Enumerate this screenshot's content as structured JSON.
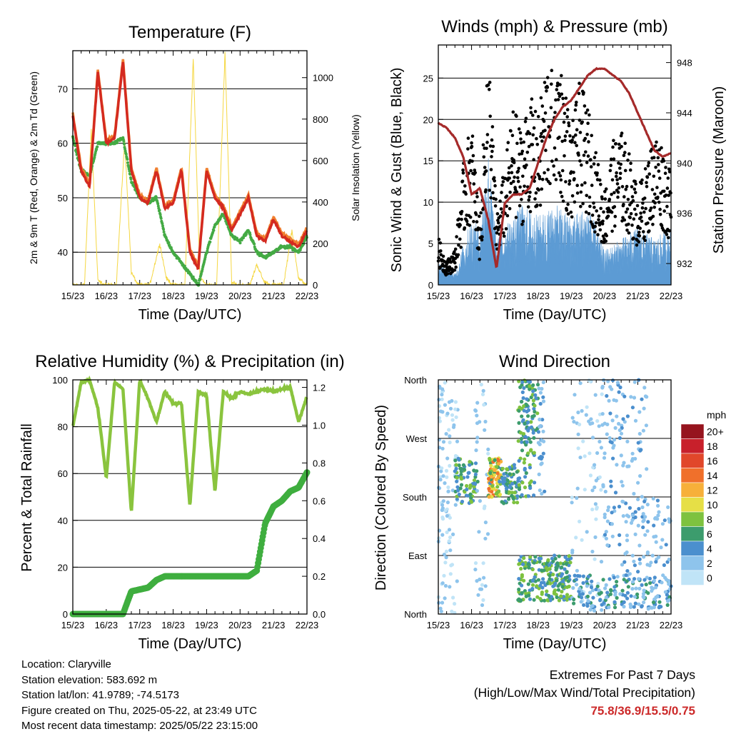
{
  "x_ticks": [
    "15/23",
    "16/23",
    "17/23",
    "18/23",
    "19/23",
    "20/23",
    "21/23",
    "22/23"
  ],
  "chart_data": [
    {
      "type": "line",
      "title": "Temperature (F)",
      "xlabel": "Time (Day/UTC)",
      "ylabel": "2m & 9m T (Red, Orange) & 2m Td (Green)",
      "y2label": "Solar Insolation (Yellow)",
      "ylim": [
        34,
        77
      ],
      "y_ticks": [
        40,
        50,
        60,
        70
      ],
      "y2lim": [
        0,
        1130
      ],
      "y2_ticks": [
        0,
        200,
        400,
        600,
        800,
        1000
      ],
      "grid": true,
      "x": [
        0,
        0.25,
        0.5,
        0.75,
        1,
        1.25,
        1.5,
        1.75,
        2,
        2.25,
        2.5,
        2.75,
        3,
        3.25,
        3.5,
        3.75,
        4,
        4.25,
        4.5,
        4.75,
        5,
        5.25,
        5.5,
        5.75,
        6,
        6.25,
        6.5,
        6.75,
        7
      ],
      "series": [
        {
          "name": "2m T",
          "color": "#d42a20",
          "values": [
            65,
            55,
            52,
            73,
            60,
            61,
            75,
            55,
            50,
            49,
            55,
            48,
            49,
            55,
            40,
            37,
            55,
            50,
            48,
            44,
            47,
            50,
            43,
            42,
            46,
            43,
            42,
            41,
            44
          ]
        },
        {
          "name": "9m T",
          "color": "#f08030",
          "values": [
            65.5,
            55.5,
            52.5,
            73.5,
            60.5,
            61.5,
            75.5,
            55.5,
            50.5,
            49.5,
            55.5,
            48.5,
            49.5,
            55.5,
            40.5,
            37.5,
            55.5,
            50.5,
            48.5,
            44.5,
            47.5,
            50.5,
            43.5,
            42.5,
            46.5,
            43.5,
            42.5,
            41.5,
            44.5
          ]
        },
        {
          "name": "2m Td",
          "color": "#44aa44",
          "values": [
            61,
            55,
            54,
            60,
            60,
            60,
            61,
            53,
            50,
            49,
            50,
            43,
            40,
            38,
            36,
            34,
            40,
            45,
            47,
            43,
            42,
            44,
            40,
            39,
            40,
            41,
            41,
            40,
            43
          ]
        },
        {
          "name": "Solar Insolation",
          "color": "#f5d742",
          "axis": "y2",
          "x": [
            0,
            0.35,
            0.55,
            0.75,
            0.95,
            1.3,
            1.55,
            1.75,
            1.95,
            2.3,
            2.6,
            2.8,
            3.0,
            3.35,
            3.6,
            3.8,
            4.0,
            4.3,
            4.55,
            4.75,
            4.95,
            5.3,
            5.5,
            5.7,
            5.9,
            6.3,
            6.55,
            6.75,
            7.0
          ],
          "values": [
            0,
            0,
            750,
            20,
            0,
            0,
            700,
            60,
            0,
            0,
            200,
            30,
            0,
            0,
            1090,
            40,
            0,
            0,
            1120,
            10,
            0,
            0,
            100,
            20,
            0,
            0,
            260,
            30,
            0
          ]
        }
      ]
    },
    {
      "type": "scatter",
      "title": "Winds (mph) & Pressure (mb)",
      "xlabel": "Time (Day/UTC)",
      "ylabel": "Sonic Wind & Gust (Blue, Black)",
      "y2label": "Station Pressure (Maroon)",
      "ylim": [
        0,
        29
      ],
      "y_ticks": [
        0,
        5,
        10,
        15,
        20,
        25
      ],
      "y2lim": [
        930.3,
        949.4
      ],
      "y2_ticks": [
        932,
        936,
        940,
        944,
        948
      ],
      "grid": true,
      "series": [
        {
          "name": "Wind",
          "color": "#5c9bd4",
          "x": [
            0,
            0.5,
            1,
            1.25,
            1.5,
            1.75,
            2,
            2.5,
            3,
            3.5,
            4,
            4.5,
            5,
            5.5,
            6,
            6.5,
            7
          ],
          "values": [
            2,
            1,
            6,
            5,
            12,
            4,
            5,
            7,
            6,
            7,
            6,
            7,
            3,
            4,
            5,
            4,
            5
          ]
        },
        {
          "name": "Gust",
          "color": "#000000",
          "x": [
            0,
            0.25,
            0.5,
            0.75,
            1,
            1.25,
            1.5,
            1.75,
            2,
            2.25,
            2.5,
            2.75,
            3,
            3.25,
            3.5,
            3.75,
            4,
            4.25,
            4.5,
            4.75,
            5,
            5.25,
            5.5,
            5.75,
            6,
            6.25,
            6.5,
            6.75,
            7
          ],
          "values": [
            4,
            2,
            3,
            10,
            14,
            5,
            22,
            6,
            10,
            15,
            13,
            16,
            14,
            19,
            22,
            18,
            13,
            17,
            15,
            11,
            8,
            12,
            13,
            11,
            8,
            10,
            13,
            12,
            9
          ]
        },
        {
          "name": "Station Pressure",
          "color": "#a52a2a",
          "axis": "y2",
          "x": [
            0,
            0.25,
            0.5,
            0.75,
            1,
            1.25,
            1.5,
            1.75,
            2,
            2.25,
            2.5,
            2.75,
            3,
            3.25,
            3.5,
            3.75,
            4,
            4.25,
            4.5,
            4.75,
            5,
            5.25,
            5.5,
            5.75,
            6,
            6.25,
            6.5,
            6.75,
            7
          ],
          "values": [
            943.2,
            942.8,
            942.0,
            940.5,
            937.5,
            938.0,
            935.5,
            931.6,
            936.8,
            937.5,
            937.5,
            938.0,
            940.0,
            942.0,
            943.5,
            944.5,
            945.0,
            946.0,
            947.0,
            947.5,
            947.5,
            947.0,
            946.5,
            945.5,
            944.0,
            942.5,
            941.0,
            940.5,
            940.8
          ]
        }
      ]
    },
    {
      "type": "line",
      "title": "Relative Humidity (%) & Precipitation (in)",
      "xlabel": "Time (Day/UTC)",
      "ylabel": "Percent & Total Rainfall",
      "ylim": [
        0,
        100
      ],
      "y_ticks": [
        0,
        20,
        40,
        60,
        80,
        100
      ],
      "y2lim": [
        0,
        1.24
      ],
      "y2_ticks": [
        0.0,
        0.2,
        0.4,
        0.6,
        0.8,
        1.0,
        1.2
      ],
      "grid": true,
      "x": [
        0,
        0.25,
        0.5,
        0.75,
        1,
        1.25,
        1.5,
        1.75,
        2,
        2.25,
        2.5,
        2.75,
        3,
        3.25,
        3.5,
        3.75,
        4,
        4.25,
        4.5,
        4.75,
        5,
        5.25,
        5.5,
        5.75,
        6,
        6.25,
        6.5,
        6.75,
        7
      ],
      "series": [
        {
          "name": "RH",
          "color": "#8ac43e",
          "values": [
            80,
            99,
            100,
            88,
            58,
            99,
            96,
            43,
            100,
            92,
            82,
            95,
            90,
            90,
            46,
            95,
            93,
            52,
            95,
            92,
            95,
            94,
            95,
            96,
            95,
            96,
            97,
            82,
            93
          ]
        },
        {
          "name": "Precipitation",
          "color": "#3fae3f",
          "axis": "y2",
          "values": [
            0,
            0,
            0,
            0,
            0,
            0,
            0,
            0.12,
            0.13,
            0.14,
            0.18,
            0.2,
            0.2,
            0.2,
            0.2,
            0.2,
            0.2,
            0.2,
            0.2,
            0.2,
            0.2,
            0.2,
            0.23,
            0.48,
            0.57,
            0.6,
            0.65,
            0.67,
            0.75
          ]
        }
      ]
    },
    {
      "type": "scatter",
      "title": "Wind Direction",
      "xlabel": "Time (Day/UTC)",
      "ylabel": "Direction (Colored By Speed)",
      "ylim": [
        0,
        360
      ],
      "y_labels": [
        "North",
        "East",
        "South",
        "West",
        "North"
      ],
      "y_label_values": [
        0,
        90,
        180,
        270,
        360
      ],
      "grid": true,
      "legend": {
        "position": "right",
        "title": "mph",
        "labels": [
          "0",
          "2",
          "4",
          "6",
          "8",
          "10",
          "12",
          "14",
          "16",
          "18",
          "20+"
        ],
        "colors": [
          "#c0e4f7",
          "#8ec4ec",
          "#4b8fce",
          "#3c9c6d",
          "#7ec23f",
          "#e6df46",
          "#f7b03a",
          "#f0702b",
          "#e1472a",
          "#c8202b",
          "#96141e"
        ]
      }
    }
  ],
  "info": {
    "location": "Location: Claryville",
    "elevation": "Station elevation: 583.692 m",
    "latlon": "Station lat/lon: 41.9789; -74.5173",
    "created": "Figure created on Thu, 2025-05-22, at 23:49 UTC",
    "recent": "Most recent data timestamp: 2025/05/22 23:15:00"
  },
  "extremes": {
    "title": "Extremes For Past 7 Days",
    "subtitle": "(High/Low/Max Wind/Total Precipitation)",
    "values": "75.8/36.9/15.5/0.75"
  }
}
